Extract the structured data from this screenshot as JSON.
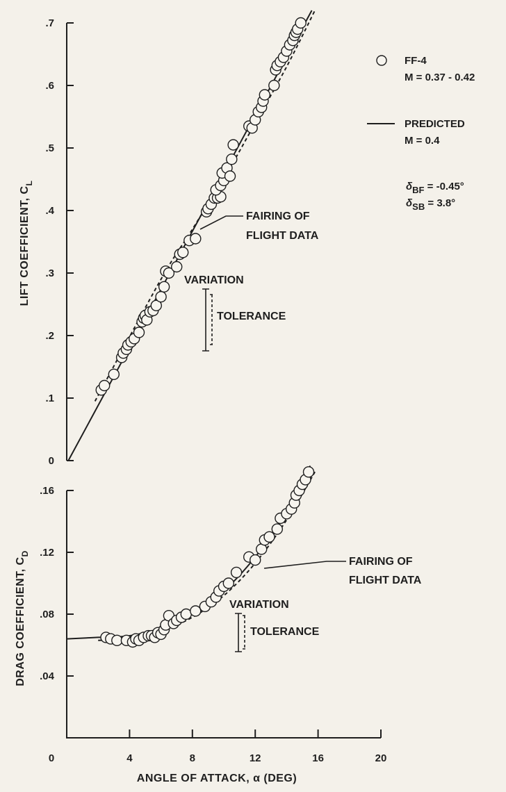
{
  "chart_data": [
    {
      "type": "line",
      "panel": "lift",
      "ylabel": "LIFT COEFFICIENT, C",
      "ylabel_sub": "L",
      "ylim": [
        0,
        0.7
      ],
      "xlim": [
        0,
        20
      ],
      "yticks": [
        {
          "v": 0,
          "label": "0"
        },
        {
          "v": 0.1,
          "label": ".1"
        },
        {
          "v": 0.2,
          "label": ".2"
        },
        {
          "v": 0.3,
          "label": ".3"
        },
        {
          "v": 0.4,
          "label": ".4"
        },
        {
          "v": 0.5,
          "label": ".5"
        },
        {
          "v": 0.6,
          "label": ".6"
        },
        {
          "v": 0.7,
          "label": ".7"
        }
      ],
      "predicted": [
        [
          0.1,
          0.0
        ],
        [
          15.6,
          0.72
        ]
      ],
      "fairing": [
        [
          1.8,
          0.095
        ],
        [
          6.0,
          0.29
        ],
        [
          8.0,
          0.37
        ],
        [
          10.2,
          0.46
        ],
        [
          12.0,
          0.54
        ],
        [
          14.0,
          0.63
        ],
        [
          15.8,
          0.72
        ]
      ],
      "points": [
        [
          2.2,
          0.113
        ],
        [
          2.4,
          0.12
        ],
        [
          3.0,
          0.138
        ],
        [
          3.5,
          0.165
        ],
        [
          3.6,
          0.172
        ],
        [
          3.8,
          0.178
        ],
        [
          3.9,
          0.185
        ],
        [
          4.1,
          0.19
        ],
        [
          4.3,
          0.195
        ],
        [
          4.6,
          0.205
        ],
        [
          4.8,
          0.222
        ],
        [
          4.9,
          0.228
        ],
        [
          5.0,
          0.232
        ],
        [
          5.1,
          0.225
        ],
        [
          5.3,
          0.238
        ],
        [
          5.5,
          0.24
        ],
        [
          5.7,
          0.248
        ],
        [
          6.0,
          0.262
        ],
        [
          6.2,
          0.278
        ],
        [
          6.3,
          0.303
        ],
        [
          6.5,
          0.3
        ],
        [
          7.0,
          0.31
        ],
        [
          7.2,
          0.33
        ],
        [
          7.4,
          0.333
        ],
        [
          7.8,
          0.352
        ],
        [
          8.2,
          0.355
        ],
        [
          8.9,
          0.398
        ],
        [
          9.0,
          0.403
        ],
        [
          9.2,
          0.41
        ],
        [
          9.4,
          0.42
        ],
        [
          9.6,
          0.42
        ],
        [
          9.8,
          0.422
        ],
        [
          9.5,
          0.433
        ],
        [
          9.8,
          0.44
        ],
        [
          10.0,
          0.448
        ],
        [
          9.9,
          0.46
        ],
        [
          10.2,
          0.468
        ],
        [
          10.4,
          0.455
        ],
        [
          10.5,
          0.482
        ],
        [
          10.6,
          0.505
        ],
        [
          11.6,
          0.535
        ],
        [
          11.8,
          0.532
        ],
        [
          12.0,
          0.545
        ],
        [
          12.2,
          0.558
        ],
        [
          12.4,
          0.565
        ],
        [
          12.5,
          0.575
        ],
        [
          12.6,
          0.585
        ],
        [
          13.2,
          0.6
        ],
        [
          13.3,
          0.625
        ],
        [
          13.4,
          0.632
        ],
        [
          13.6,
          0.638
        ],
        [
          13.8,
          0.645
        ],
        [
          14.0,
          0.655
        ],
        [
          14.2,
          0.665
        ],
        [
          14.4,
          0.672
        ],
        [
          14.5,
          0.68
        ],
        [
          14.6,
          0.685
        ],
        [
          14.7,
          0.69
        ],
        [
          14.9,
          0.7
        ]
      ]
    },
    {
      "type": "line",
      "panel": "drag",
      "xlabel": "ANGLE OF ATTACK, α (DEG)",
      "ylabel": "DRAG COEFFICIENT, C",
      "ylabel_sub": "D",
      "ylim": [
        0,
        0.17
      ],
      "xlim": [
        0,
        20
      ],
      "xticks": [
        {
          "v": 0,
          "label": "0"
        },
        {
          "v": 4,
          "label": "4"
        },
        {
          "v": 8,
          "label": "8"
        },
        {
          "v": 12,
          "label": "12"
        },
        {
          "v": 16,
          "label": "16"
        },
        {
          "v": 20,
          "label": "20"
        }
      ],
      "yticks": [
        {
          "v": 0.04,
          "label": ".04"
        },
        {
          "v": 0.08,
          "label": ".08"
        },
        {
          "v": 0.12,
          "label": ".12"
        },
        {
          "v": 0.16,
          "label": ".16"
        }
      ],
      "predicted": [
        [
          0,
          0.064
        ],
        [
          2,
          0.065
        ],
        [
          4,
          0.066
        ],
        [
          6,
          0.071
        ],
        [
          8,
          0.08
        ],
        [
          10,
          0.095
        ],
        [
          12,
          0.117
        ],
        [
          14,
          0.146
        ],
        [
          15.5,
          0.176
        ]
      ],
      "fairing": [
        [
          2,
          0.063
        ],
        [
          4,
          0.064
        ],
        [
          6,
          0.069
        ],
        [
          8,
          0.078
        ],
        [
          10,
          0.092
        ],
        [
          12,
          0.113
        ],
        [
          14,
          0.141
        ],
        [
          15.8,
          0.172
        ]
      ],
      "points": [
        [
          2.5,
          0.065
        ],
        [
          2.8,
          0.064
        ],
        [
          3.2,
          0.063
        ],
        [
          3.8,
          0.063
        ],
        [
          4.2,
          0.062
        ],
        [
          4.4,
          0.064
        ],
        [
          4.6,
          0.063
        ],
        [
          4.9,
          0.065
        ],
        [
          5.2,
          0.066
        ],
        [
          5.4,
          0.066
        ],
        [
          5.6,
          0.065
        ],
        [
          5.8,
          0.068
        ],
        [
          6.0,
          0.067
        ],
        [
          6.2,
          0.07
        ],
        [
          6.3,
          0.073
        ],
        [
          6.5,
          0.079
        ],
        [
          6.8,
          0.074
        ],
        [
          7.0,
          0.076
        ],
        [
          7.3,
          0.078
        ],
        [
          7.6,
          0.08
        ],
        [
          8.2,
          0.082
        ],
        [
          8.8,
          0.085
        ],
        [
          9.2,
          0.088
        ],
        [
          9.5,
          0.091
        ],
        [
          9.7,
          0.095
        ],
        [
          10.0,
          0.098
        ],
        [
          10.3,
          0.1
        ],
        [
          10.8,
          0.107
        ],
        [
          11.6,
          0.117
        ],
        [
          12.0,
          0.115
        ],
        [
          12.4,
          0.122
        ],
        [
          12.6,
          0.128
        ],
        [
          12.9,
          0.13
        ],
        [
          13.4,
          0.135
        ],
        [
          13.6,
          0.142
        ],
        [
          14.0,
          0.145
        ],
        [
          14.3,
          0.148
        ],
        [
          14.5,
          0.152
        ],
        [
          14.6,
          0.157
        ],
        [
          14.8,
          0.16
        ],
        [
          15.0,
          0.164
        ],
        [
          15.2,
          0.167
        ],
        [
          15.4,
          0.172
        ]
      ]
    }
  ],
  "legend": {
    "data_label": "FF-4",
    "data_mach": "M = 0.37 - 0.42",
    "pred_label": "PREDICTED",
    "pred_mach": "M = 0.4",
    "bf_sym": "δ",
    "bf_sub": "BF",
    "bf_val": " = -0.45°",
    "sb_sym": "δ",
    "sb_sub": "SB",
    "sb_val": " = 3.8°"
  },
  "annotations": {
    "lift_fairing_1": "FAIRING OF",
    "lift_fairing_2": "FLIGHT DATA",
    "lift_variation": "VARIATION",
    "lift_tolerance": "TOLERANCE",
    "drag_fairing_1": "FAIRING OF",
    "drag_fairing_2": "FLIGHT DATA",
    "drag_variation": "VARIATION",
    "drag_tolerance": "TOLERANCE"
  }
}
